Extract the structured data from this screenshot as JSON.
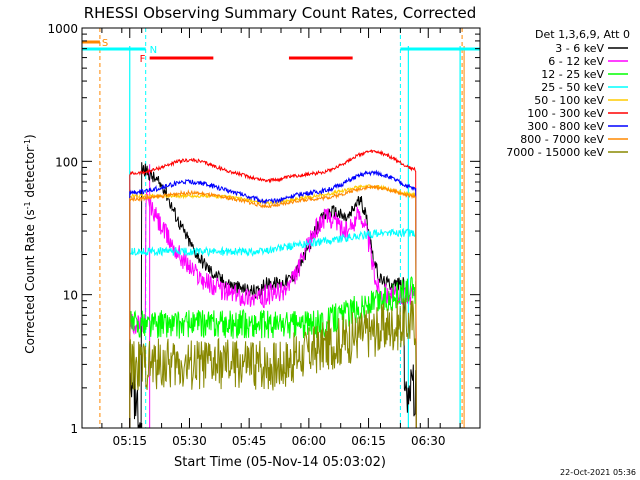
{
  "chart_data": {
    "type": "line",
    "title": "RHESSI Observing Summary Count Rates, Corrected",
    "xlabel": "Start Time (05-Nov-14 05:03:02)",
    "ylabel_main": "Corrected Count Rate (s",
    "ylabel_sup1": "-1",
    "ylabel_mid": " detector",
    "ylabel_sup2": "-1",
    "ylabel_end": ")",
    "x_range_minutes": [
      0,
      100
    ],
    "y_scale": "log",
    "ylim": [
      1,
      1000
    ],
    "x_ticks": [
      {
        "label": "05:15",
        "minute": 12
      },
      {
        "label": "05:30",
        "minute": 27
      },
      {
        "label": "05:45",
        "minute": 42
      },
      {
        "label": "06:00",
        "minute": 57
      },
      {
        "label": "06:15",
        "minute": 72
      },
      {
        "label": "06:30",
        "minute": 87
      }
    ],
    "y_ticks": [
      {
        "label": "1",
        "value": 1
      },
      {
        "label": "10",
        "value": 10
      },
      {
        "label": "100",
        "value": 100
      },
      {
        "label": "1000",
        "value": 1000
      }
    ],
    "legend_header": "Det 1,3,6,9, Att 0",
    "legend_placement": "right",
    "series": [
      {
        "name": "3 - 6 keV",
        "color": "#000000",
        "key": "3-6"
      },
      {
        "name": "6 - 12 keV",
        "color": "#ff00ff",
        "key": "6-12"
      },
      {
        "name": "12 - 25 keV",
        "color": "#00ff00",
        "key": "12-25"
      },
      {
        "name": "25 - 50 keV",
        "color": "#00ffff",
        "key": "25-50"
      },
      {
        "name": "50 - 100 keV",
        "color": "#ffcc00",
        "key": "50-100"
      },
      {
        "name": "100 - 300 keV",
        "color": "#ff0000",
        "key": "100-300"
      },
      {
        "name": "300 - 800 keV",
        "color": "#0000ff",
        "key": "300-800"
      },
      {
        "name": "800 - 7000 keV",
        "color": "#ff8800",
        "key": "800-7000"
      },
      {
        "name": "7000 - 15000 keV",
        "color": "#888800",
        "key": "7000-15000"
      }
    ],
    "flags": [
      {
        "label": "S",
        "color": "#ff8800",
        "x_start_min": 0,
        "x_end_min": 4.5
      },
      {
        "label": "N",
        "color": "#00ffff",
        "x_start_min": 0,
        "x_end_min": 16,
        "x2_start_min": 80,
        "x2_end_min": 100
      },
      {
        "label": "F",
        "color": "#ff0000",
        "x_start_min": 17,
        "x_end_min": 33,
        "x2_start_min": 52,
        "x2_end_min": 68
      }
    ],
    "markers": {
      "orange_dashed_min": [
        4.5,
        95.5
      ],
      "cyan_dashed_min": [
        16,
        80
      ],
      "cyan_solid_min": [
        12,
        82,
        95
      ],
      "magenta_solid_min": [
        17
      ],
      "orange_solid_min": [
        96
      ]
    },
    "data_interval_min": [
      12,
      84
    ]
  },
  "footer": {
    "timestamp": "22-Oct-2021 05:36"
  }
}
